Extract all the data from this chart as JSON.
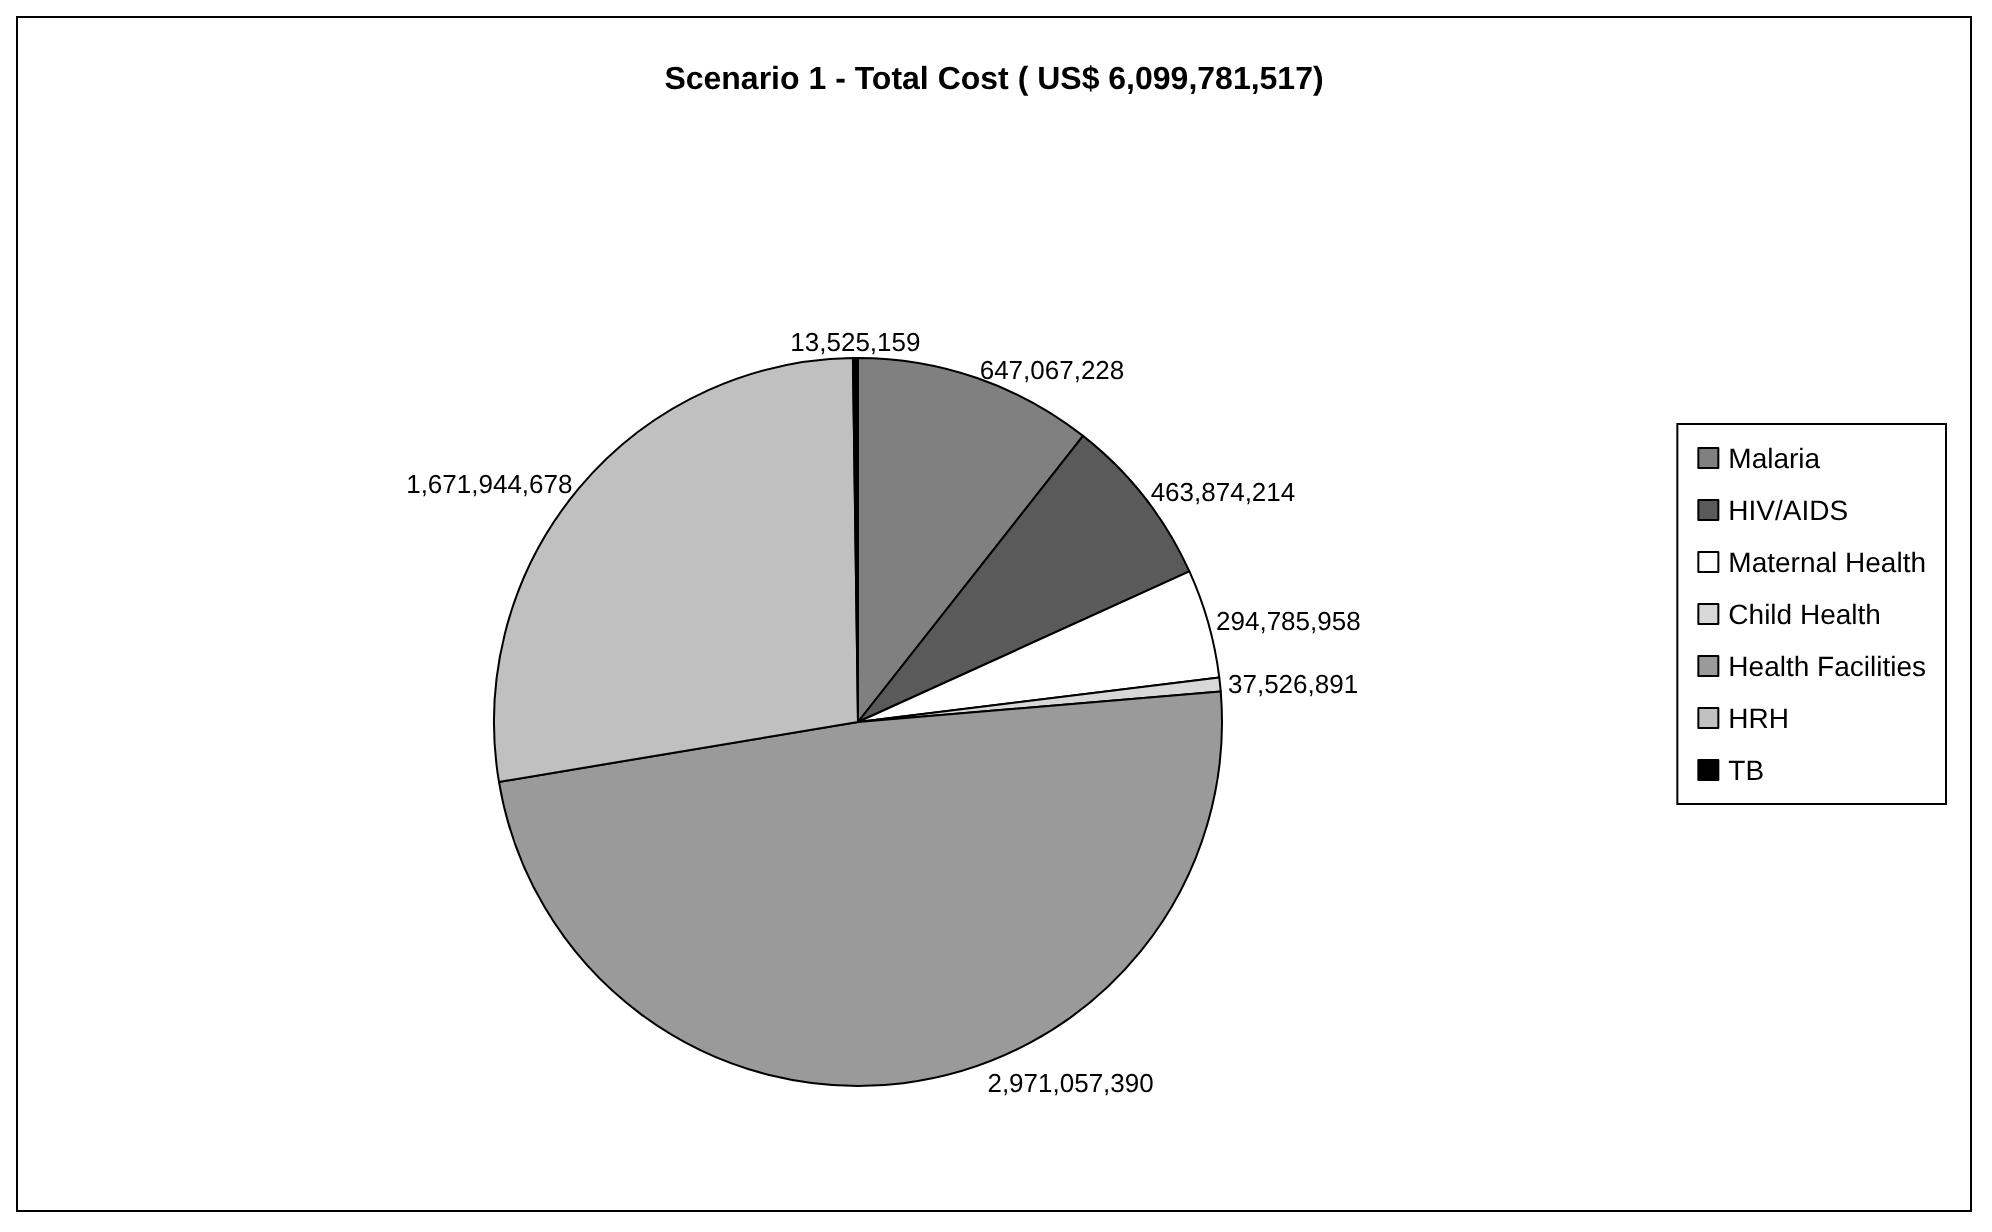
{
  "chart_data": {
    "type": "pie",
    "title": "Scenario 1 - Total Cost ( US$ 6,099,781,517)",
    "categories": [
      "Malaria",
      "HIV/AIDS",
      "Maternal Health",
      "Child Health",
      "Health Facilities",
      "HRH",
      "TB"
    ],
    "values": [
      647067228,
      463874214,
      294785958,
      37526891,
      2971057390,
      1671944678,
      13525159
    ],
    "colors": [
      "#808080",
      "#5a5a5a",
      "#ffffff",
      "#d8d8d8",
      "#9a9a9a",
      "#c0c0c0",
      "#000000"
    ],
    "value_labels": [
      "647,067,228",
      "463,874,214",
      "294,785,958",
      "37,526,891",
      "2,971,057,390",
      "1,671,944,678",
      "13,525,159"
    ],
    "legend": "right"
  }
}
